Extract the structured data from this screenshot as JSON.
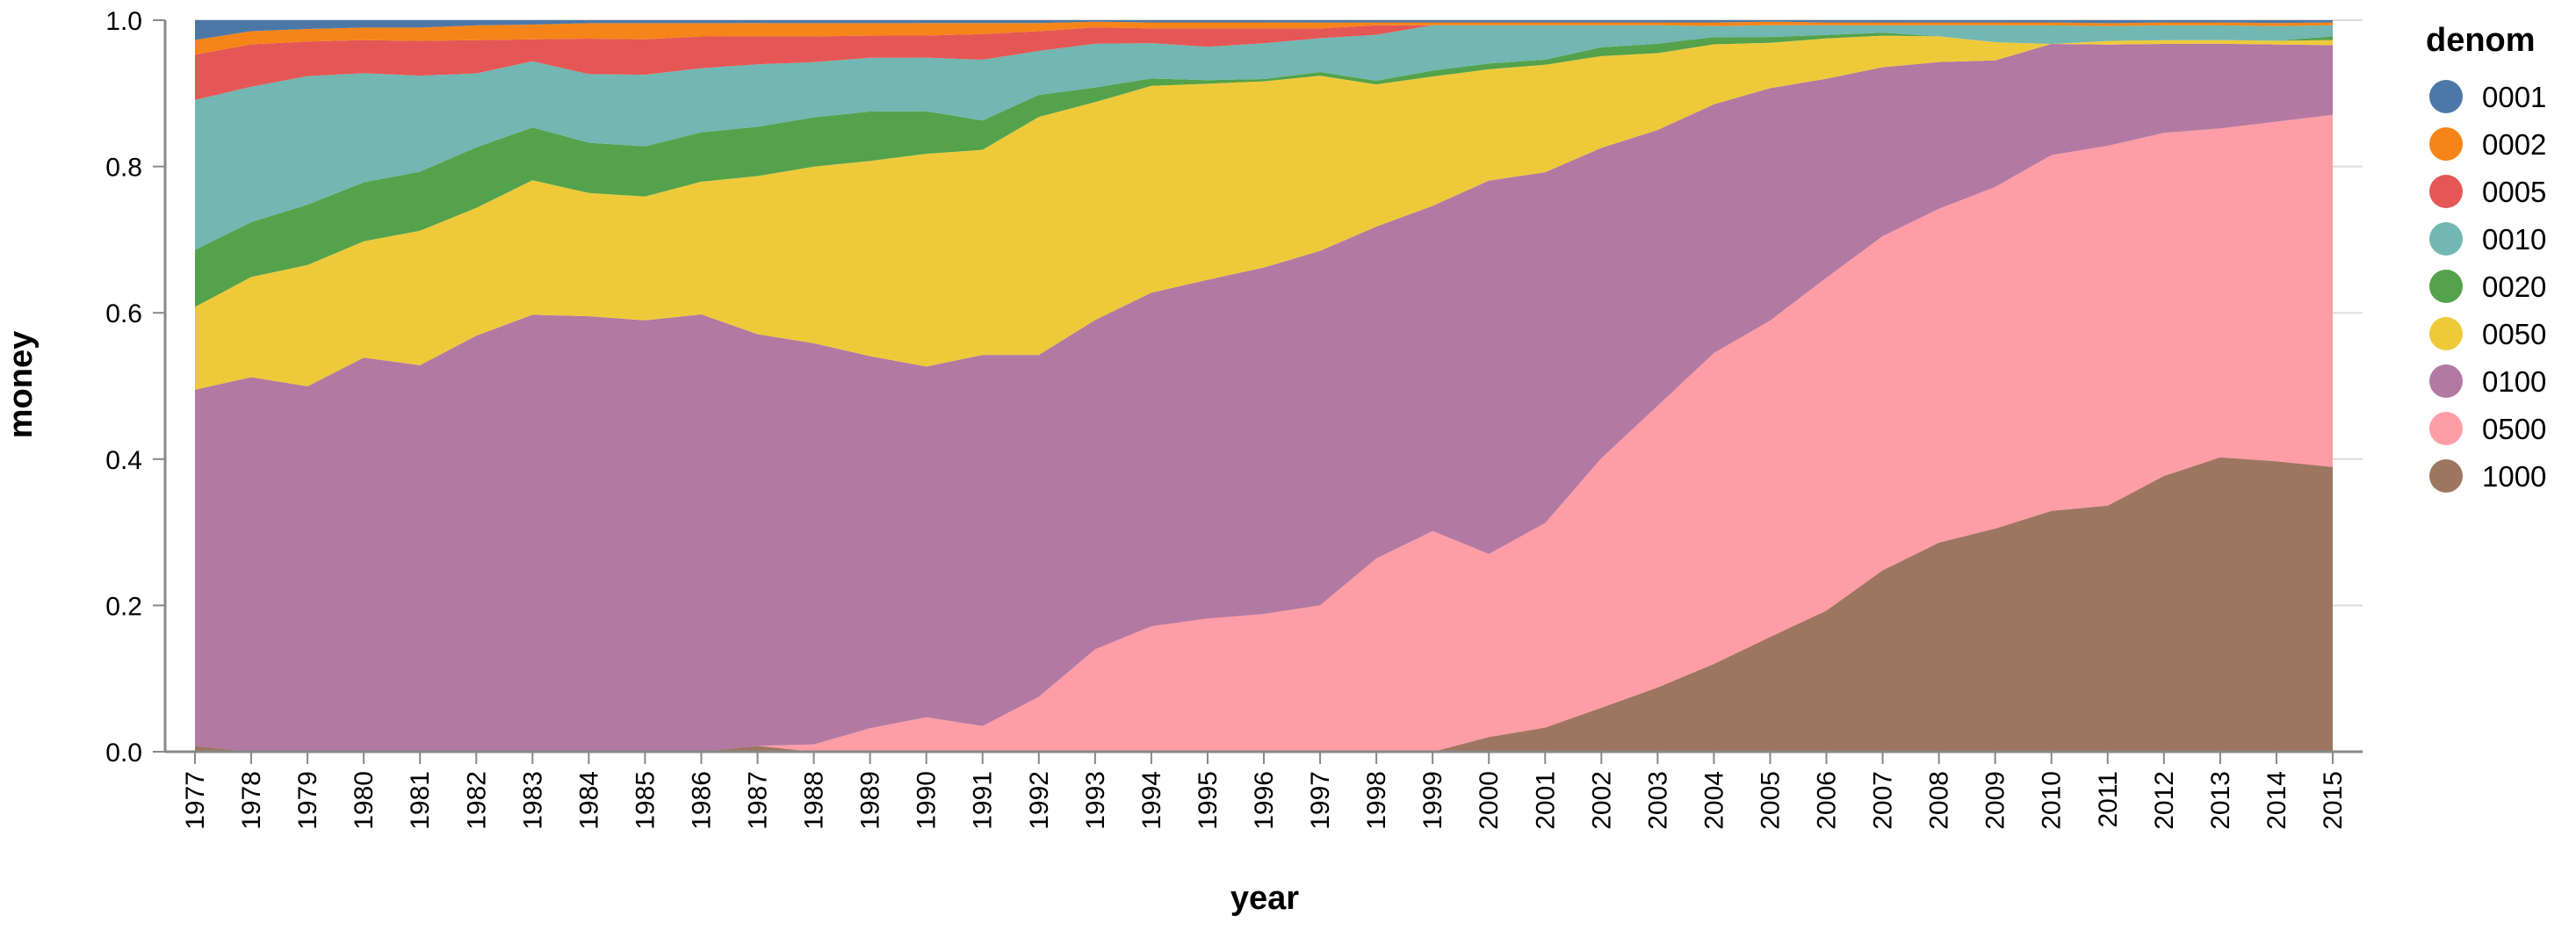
{
  "chart_data": {
    "type": "area",
    "stacked": "normalize",
    "xlabel": "year",
    "ylabel": "money",
    "ylim": [
      0,
      1
    ],
    "yticks": [
      "0.0",
      "0.2",
      "0.4",
      "0.6",
      "0.8",
      "1.0"
    ],
    "grid": "horizontal",
    "legend": {
      "title": "denom",
      "placement": "right"
    },
    "x": [
      "1977",
      "1978",
      "1979",
      "1980",
      "1981",
      "1982",
      "1983",
      "1984",
      "1985",
      "1986",
      "1987",
      "1988",
      "1989",
      "1990",
      "1991",
      "1992",
      "1993",
      "1994",
      "1995",
      "1996",
      "1997",
      "1998",
      "1999",
      "2000",
      "2001",
      "2002",
      "2003",
      "2004",
      "2005",
      "2006",
      "2007",
      "2008",
      "2009",
      "2010",
      "2011",
      "2012",
      "2013",
      "2014",
      "2015"
    ],
    "series": [
      {
        "name": "1000",
        "color": "#9d7660",
        "values": [
          0.008,
          0,
          0,
          0,
          0,
          0,
          0,
          0,
          0,
          0,
          0.008,
          0,
          0,
          0,
          0,
          0,
          0,
          0,
          0,
          0,
          0,
          0,
          0,
          0.02,
          0.033,
          0.06,
          0.088,
          0.12,
          0.157,
          0.193,
          0.247,
          0.285,
          0.305,
          0.325,
          0.333,
          0.372,
          0.4,
          0.395,
          0.388
        ]
      },
      {
        "name": "0500",
        "color": "#ff9da6",
        "values": [
          0,
          0,
          0,
          0,
          0,
          0,
          0,
          0,
          0,
          0,
          0,
          0.01,
          0.032,
          0.047,
          0.035,
          0.075,
          0.14,
          0.17,
          0.18,
          0.185,
          0.195,
          0.265,
          0.302,
          0.25,
          0.28,
          0.34,
          0.385,
          0.425,
          0.433,
          0.455,
          0.455,
          0.455,
          0.467,
          0.48,
          0.487,
          0.463,
          0.447,
          0.462,
          0.48
        ]
      },
      {
        "name": "0100",
        "color": "#b279a2",
        "values": [
          0.487,
          0.512,
          0.497,
          0.535,
          0.523,
          0.563,
          0.595,
          0.59,
          0.585,
          0.593,
          0.56,
          0.545,
          0.505,
          0.478,
          0.507,
          0.467,
          0.45,
          0.452,
          0.458,
          0.465,
          0.472,
          0.455,
          0.445,
          0.51,
          0.48,
          0.423,
          0.377,
          0.34,
          0.318,
          0.272,
          0.23,
          0.2,
          0.173,
          0.15,
          0.137,
          0.12,
          0.115,
          0.105,
          0.095
        ]
      },
      {
        "name": "0050",
        "color": "#eeca3b",
        "values": [
          0.113,
          0.137,
          0.165,
          0.158,
          0.182,
          0.173,
          0.183,
          0.167,
          0.168,
          0.18,
          0.215,
          0.24,
          0.265,
          0.29,
          0.28,
          0.325,
          0.298,
          0.28,
          0.265,
          0.25,
          0.233,
          0.195,
          0.177,
          0.152,
          0.147,
          0.125,
          0.105,
          0.082,
          0.062,
          0.055,
          0.043,
          0.035,
          0.025,
          0.0,
          0.005,
          0.005,
          0.005,
          0.005,
          0.007
        ]
      },
      {
        "name": "0020",
        "color": "#54a24b",
        "values": [
          0.078,
          0.075,
          0.082,
          0.08,
          0.08,
          0.082,
          0.072,
          0.068,
          0.068,
          0.067,
          0.067,
          0.067,
          0.067,
          0.058,
          0.04,
          0.03,
          0.02,
          0.01,
          0.005,
          0.003,
          0.005,
          0.005,
          0.008,
          0.008,
          0.007,
          0.012,
          0.013,
          0.01,
          0.008,
          0.005,
          0.004,
          0.0,
          0.0,
          0.0,
          0.0,
          0.0,
          0.0,
          0.0,
          0.005
        ]
      },
      {
        "name": "0010",
        "color": "#72b7b2",
        "values": [
          0.205,
          0.185,
          0.175,
          0.148,
          0.13,
          0.1,
          0.09,
          0.093,
          0.097,
          0.087,
          0.085,
          0.075,
          0.073,
          0.073,
          0.083,
          0.06,
          0.06,
          0.048,
          0.045,
          0.048,
          0.045,
          0.063,
          0.062,
          0.052,
          0.047,
          0.03,
          0.025,
          0.015,
          0.016,
          0.013,
          0.01,
          0.015,
          0.023,
          0.025,
          0.02,
          0.02,
          0.02,
          0.02,
          0.015
        ]
      },
      {
        "name": "0005",
        "color": "#e45756",
        "values": [
          0.062,
          0.058,
          0.047,
          0.045,
          0.047,
          0.045,
          0.03,
          0.048,
          0.048,
          0.043,
          0.038,
          0.035,
          0.03,
          0.03,
          0.035,
          0.027,
          0.022,
          0.02,
          0.025,
          0.02,
          0.013,
          0.013,
          0.0,
          0.0,
          0.0,
          0.0,
          0.0,
          0.0,
          0.0,
          0.0,
          0.0,
          0.0,
          0.0,
          0.0,
          0.0,
          0.0,
          0.0,
          0.0,
          0.0
        ]
      },
      {
        "name": "0002",
        "color": "#f58518",
        "values": [
          0.02,
          0.018,
          0.017,
          0.017,
          0.018,
          0.02,
          0.02,
          0.021,
          0.022,
          0.018,
          0.018,
          0.018,
          0.017,
          0.017,
          0.015,
          0.011,
          0.008,
          0.008,
          0.008,
          0.008,
          0.008,
          0.004,
          0.004,
          0.004,
          0.004,
          0.004,
          0.004,
          0.005,
          0.005,
          0.004,
          0.004,
          0.004,
          0.004,
          0.004,
          0.004,
          0.004,
          0.004,
          0.004,
          0.004
        ]
      },
      {
        "name": "0001",
        "color": "#4c78a8",
        "values": [
          0.027,
          0.015,
          0.012,
          0.01,
          0.01,
          0.007,
          0.006,
          0.004,
          0.004,
          0.004,
          0.004,
          0.004,
          0.004,
          0.004,
          0.004,
          0.004,
          0.002,
          0.003,
          0.003,
          0.003,
          0.003,
          0.003,
          0.003,
          0.003,
          0.003,
          0.003,
          0.003,
          0.003,
          0.002,
          0.003,
          0.003,
          0.003,
          0.003,
          0.003,
          0.004,
          0.003,
          0.003,
          0.004,
          0.003
        ]
      }
    ],
    "legend_order": [
      "0001",
      "0002",
      "0005",
      "0010",
      "0020",
      "0050",
      "0100",
      "0500",
      "1000"
    ]
  }
}
